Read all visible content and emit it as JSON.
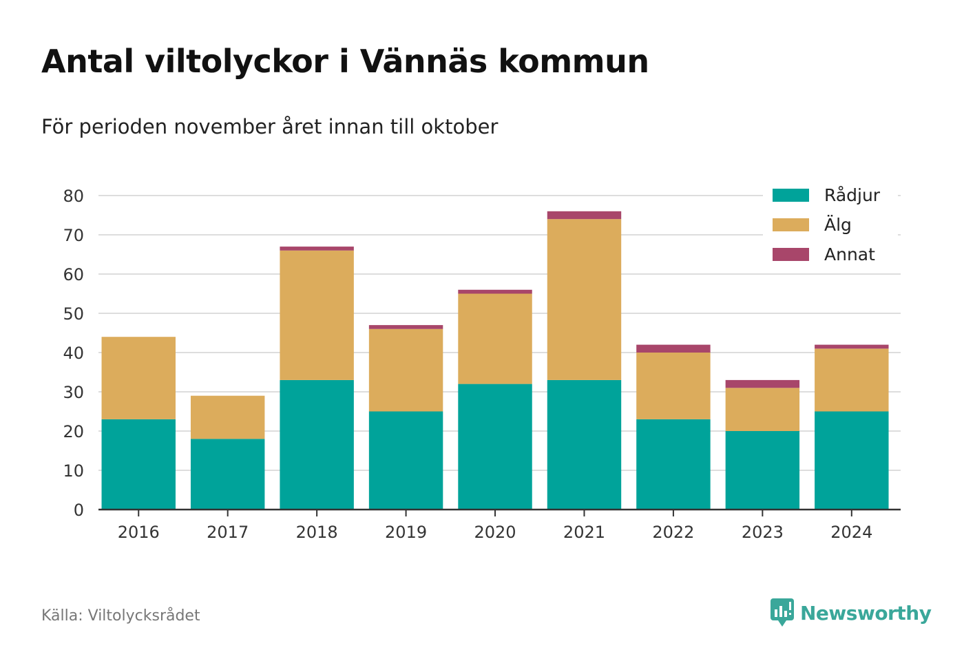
{
  "header": {
    "title": "Antal viltolyckor i Vännäs kommun",
    "subtitle": "För perioden november året innan till oktober"
  },
  "footer": {
    "source": "Källa: Viltolycksrådet",
    "brand": "Newsworthy"
  },
  "chart_data": {
    "type": "bar",
    "stacked": true,
    "categories": [
      "2016",
      "2017",
      "2018",
      "2019",
      "2020",
      "2021",
      "2022",
      "2023",
      "2024"
    ],
    "series": [
      {
        "name": "Rådjur",
        "color": "#00a39a",
        "values": [
          23,
          18,
          33,
          25,
          32,
          33,
          23,
          20,
          25
        ]
      },
      {
        "name": "Älg",
        "color": "#dcac5c",
        "values": [
          21,
          11,
          33,
          21,
          23,
          41,
          17,
          11,
          16
        ]
      },
      {
        "name": "Annat",
        "color": "#a8466a",
        "values": [
          0,
          0,
          1,
          1,
          1,
          2,
          2,
          2,
          1
        ]
      }
    ],
    "ylim": [
      0,
      80
    ],
    "yticks": [
      0,
      10,
      20,
      30,
      40,
      50,
      60,
      70,
      80
    ],
    "grid": true,
    "legend": "top-right"
  }
}
